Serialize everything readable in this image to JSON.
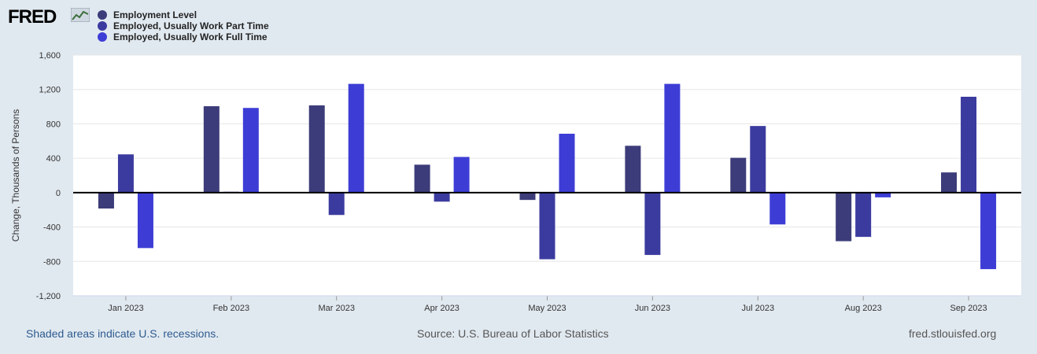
{
  "brand": {
    "name": "FRED"
  },
  "colors": {
    "series1": "#3c3c7a",
    "series2": "#3b3b9f",
    "series3": "#3d3dd6",
    "grid": "#e6e6e6",
    "axis_text": "#333333",
    "zero_line": "#000000"
  },
  "legend": {
    "items": [
      {
        "label": "Employment Level",
        "color": "#3c3c7a"
      },
      {
        "label": "Employed, Usually Work Part Time",
        "color": "#3b3b9f"
      },
      {
        "label": "Employed, Usually Work Full Time",
        "color": "#3d3dd6"
      }
    ]
  },
  "chart_data": {
    "type": "bar",
    "title": "",
    "xlabel": "",
    "ylabel": "Change, Thousands of Persons",
    "ylim": [
      -1200,
      1600
    ],
    "yticks": [
      -1200,
      -800,
      -400,
      0,
      400,
      800,
      1200,
      1600
    ],
    "ytick_labels": [
      "-1,200",
      "-800",
      "-400",
      "0",
      "400",
      "800",
      "1,200",
      "1,600"
    ],
    "categories": [
      "Jan 2023",
      "Feb 2023",
      "Mar 2023",
      "Apr 2023",
      "May 2023",
      "Jun 2023",
      "Jul 2023",
      "Aug 2023",
      "Sep 2023"
    ],
    "series": [
      {
        "name": "Employment Level",
        "values": [
          -185,
          1005,
          1015,
          325,
          -85,
          545,
          405,
          -565,
          235
        ]
      },
      {
        "name": "Employed, Usually Work Part Time",
        "values": [
          445,
          10,
          -260,
          -105,
          -775,
          -725,
          775,
          -515,
          1115
        ]
      },
      {
        "name": "Employed, Usually Work Full Time",
        "values": [
          -645,
          985,
          1265,
          415,
          685,
          1265,
          -370,
          -55,
          -890
        ]
      }
    ],
    "grid": true
  },
  "footer": {
    "recession_note": "Shaded areas indicate U.S. recessions.",
    "source": "Source: U.S. Bureau of Labor Statistics",
    "site": "fred.stlouisfed.org"
  }
}
